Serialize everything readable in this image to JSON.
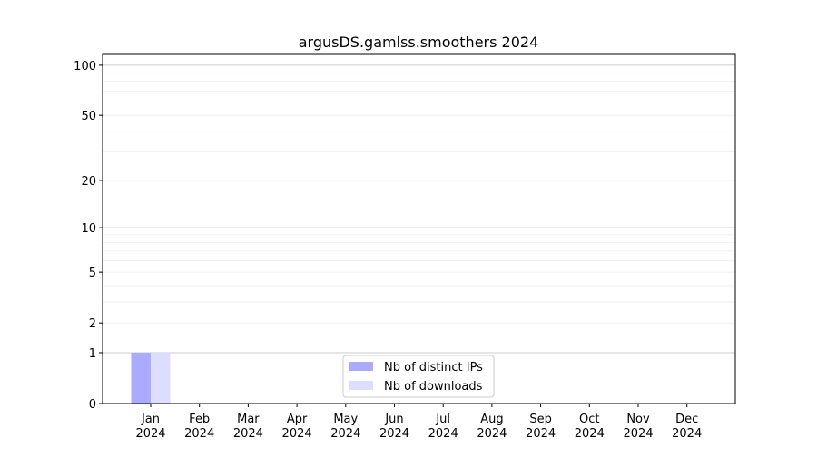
{
  "chart_data": {
    "type": "bar",
    "title": "argusDS.gamlss.smoothers 2024",
    "xlabel": "",
    "ylabel": "",
    "y_scale": "log(1+y)",
    "ylim": [
      0,
      116
    ],
    "yticks": [
      0,
      1,
      2,
      5,
      10,
      20,
      50,
      100
    ],
    "grid": true,
    "legend_position": "lower-center",
    "categories": [
      "Jan\n2024",
      "Feb\n2024",
      "Mar\n2024",
      "Apr\n2024",
      "May\n2024",
      "Jun\n2024",
      "Jul\n2024",
      "Aug\n2024",
      "Sep\n2024",
      "Oct\n2024",
      "Nov\n2024",
      "Dec\n2024"
    ],
    "series": [
      {
        "name": "Nb of distinct IPs",
        "color": "#aaaaff",
        "values": [
          1,
          0,
          0,
          0,
          0,
          0,
          0,
          0,
          0,
          0,
          0,
          0
        ]
      },
      {
        "name": "Nb of downloads",
        "color": "#ddddff",
        "values": [
          1,
          0,
          0,
          0,
          0,
          0,
          0,
          0,
          0,
          0,
          0,
          0
        ]
      }
    ]
  }
}
